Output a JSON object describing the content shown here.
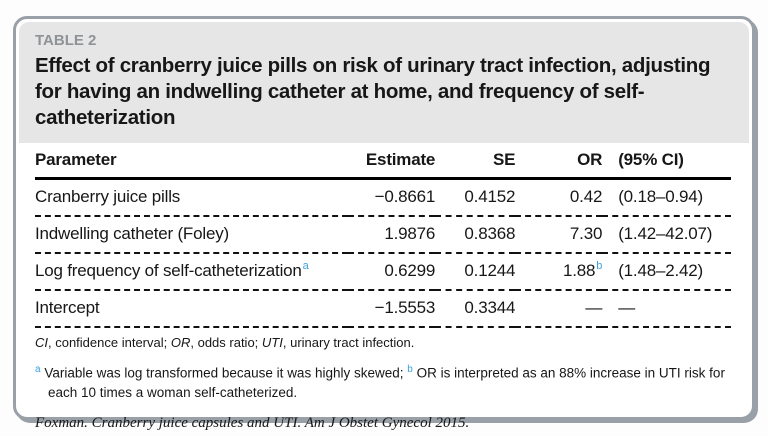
{
  "card": {
    "label": "TABLE 2",
    "title": "Effect of cranberry juice pills on risk of urinary tract infection, adjusting for having an indwelling catheter at home, and frequency of self-catheterization"
  },
  "table": {
    "columns": [
      "Parameter",
      "Estimate",
      "SE",
      "OR",
      "(95% CI)"
    ],
    "rows": [
      {
        "parameter": "Cranberry juice pills",
        "parameter_sup": "",
        "estimate": "−0.8661",
        "se": "0.4152",
        "or": "0.42",
        "or_sup": "",
        "ci": "(0.18–0.94)"
      },
      {
        "parameter": "Indwelling catheter (Foley)",
        "parameter_sup": "",
        "estimate": "1.9876",
        "se": "0.8368",
        "or": "7.30",
        "or_sup": "",
        "ci": "(1.42–42.07)"
      },
      {
        "parameter": "Log frequency of self-catheterization",
        "parameter_sup": "a",
        "estimate": "0.6299",
        "se": "0.1244",
        "or": "1.88",
        "or_sup": "b",
        "ci": "(1.48–2.42)"
      },
      {
        "parameter": "Intercept",
        "parameter_sup": "",
        "estimate": "−1.5553",
        "se": "0.3344",
        "or": "—",
        "or_sup": "",
        "ci": "—"
      }
    ]
  },
  "footnotes": {
    "abbreviations": [
      {
        "abbr": "CI",
        "meaning": "confidence interval"
      },
      {
        "abbr": "OR",
        "meaning": "odds ratio"
      },
      {
        "abbr": "UTI",
        "meaning": "urinary tract infection"
      }
    ],
    "notes": [
      {
        "marker": "a",
        "text": "Variable was log transformed because it was highly skewed;"
      },
      {
        "marker": "b",
        "text": "OR is interpreted as an 88% increase in UTI risk for each 10 times a woman self-catheterized."
      }
    ]
  },
  "citation": "Foxman. Cranberry juice capsules and UTI. Am J Obstet Gynecol 2015.",
  "colors": {
    "header_background": "#e6e6e6",
    "table_label_gray": "#8f9297",
    "superscript_blue": "#3da0dc",
    "card_border_gray": "#9aa0a8",
    "text_black": "#171717"
  }
}
